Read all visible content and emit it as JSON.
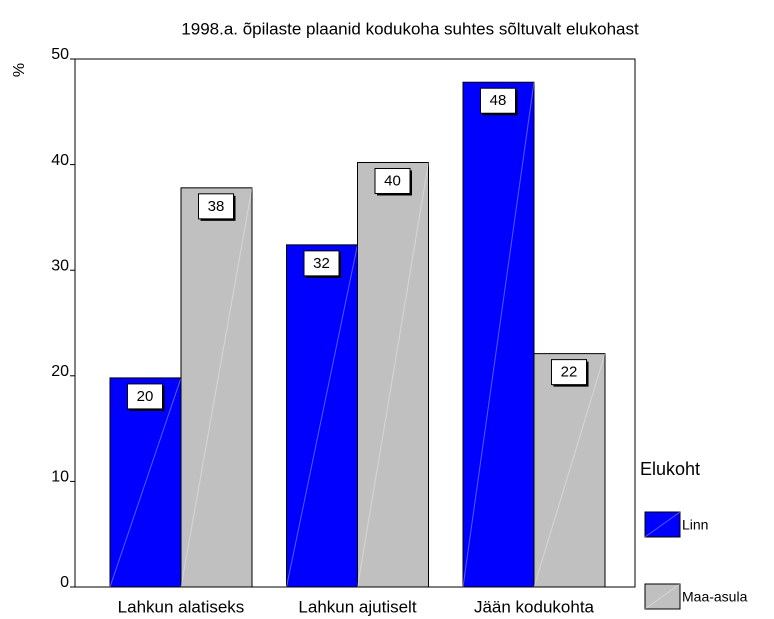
{
  "chart_data": {
    "type": "bar",
    "title": "1998.a. õpilaste plaanid kodukoha suhtes sõltuvalt elukohast",
    "y_label": "%",
    "legend_title": "Elukoht",
    "categories": [
      "Lahkun alatiseks",
      "Lahkun ajutiselt",
      "Jään kodukohta"
    ],
    "series": [
      {
        "name": "Linn",
        "color": "#0000ff",
        "values": [
          19.8,
          32.4,
          47.8
        ],
        "value_labels": [
          "20",
          "32",
          "48"
        ]
      },
      {
        "name": "Maa-asula",
        "color": "#c0c0c0",
        "values": [
          37.8,
          40.2,
          22.1
        ],
        "value_labels": [
          "38",
          "40",
          "22"
        ]
      }
    ],
    "ylim": [
      0,
      50
    ],
    "yticks": [
      0,
      10,
      20,
      30,
      40,
      50
    ],
    "legend_position": "right"
  }
}
